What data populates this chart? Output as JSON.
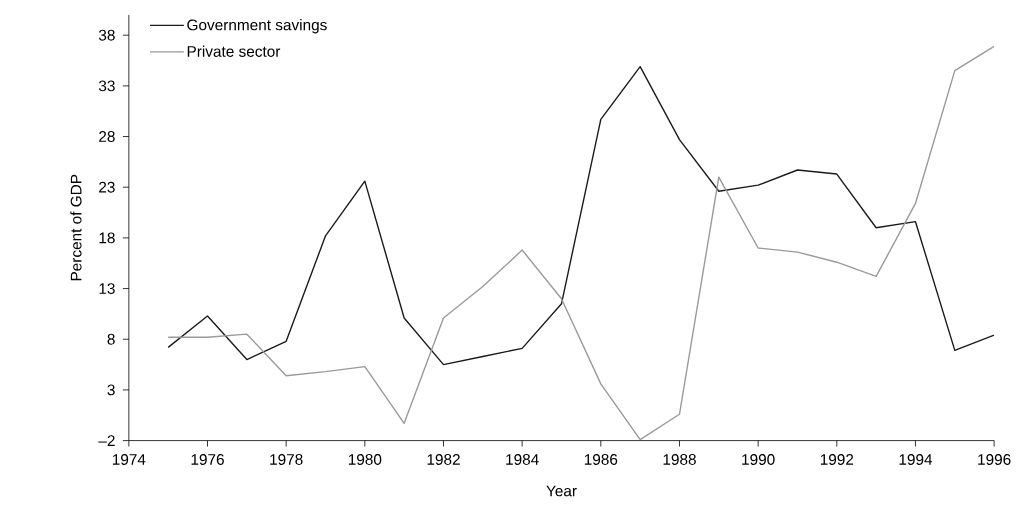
{
  "chart_data": {
    "type": "line",
    "xlabel": "Year",
    "ylabel": "Percent of GDP",
    "x": [
      1975,
      1976,
      1977,
      1978,
      1979,
      1980,
      1981,
      1982,
      1983,
      1984,
      1985,
      1986,
      1987,
      1988,
      1989,
      1990,
      1991,
      1992,
      1993,
      1994,
      1995,
      1996
    ],
    "series": [
      {
        "name": "Government savings",
        "color": "#1a1a1a",
        "values": [
          7.2,
          10.3,
          6.0,
          7.8,
          18.2,
          23.6,
          10.1,
          5.5,
          6.3,
          7.1,
          11.5,
          29.7,
          34.9,
          27.7,
          22.6,
          23.2,
          24.7,
          24.3,
          19.0,
          19.6,
          6.9,
          8.4
        ]
      },
      {
        "name": "Private sector",
        "color": "#999999",
        "values": [
          8.2,
          8.2,
          8.5,
          4.4,
          4.8,
          5.3,
          -0.3,
          10.1,
          13.2,
          16.8,
          12.0,
          3.6,
          -1.9,
          0.6,
          24.0,
          17.0,
          16.6,
          15.6,
          14.2,
          21.4,
          34.5,
          36.9
        ]
      }
    ],
    "xlim": [
      1974,
      1996
    ],
    "ylim": [
      -2,
      40
    ],
    "xticks": [
      1974,
      1976,
      1978,
      1980,
      1982,
      1984,
      1986,
      1988,
      1990,
      1992,
      1994,
      1996
    ],
    "yticks": [
      {
        "value": -2,
        "label": "–2"
      },
      3,
      8,
      13,
      18,
      23,
      28,
      33,
      38
    ],
    "legend": "top left",
    "grid": false,
    "marker": "none",
    "line_style": "solid"
  }
}
